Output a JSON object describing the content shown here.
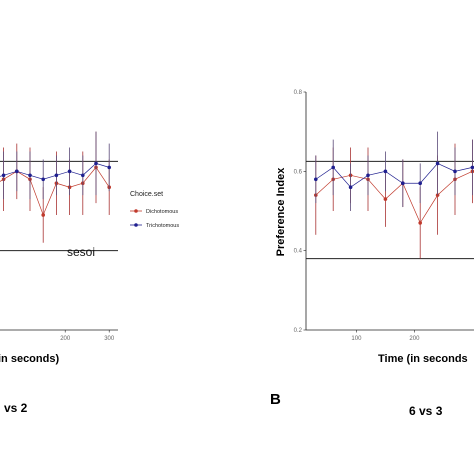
{
  "colors": {
    "dichotomous": "#c0392b",
    "trichotomous": "#1f1f8f",
    "dichotomous_bar": "#a83232",
    "trichotomous_bar": "#5a4a78",
    "axis": "#222222",
    "reference_line": "#222222"
  },
  "legend": {
    "title": "Choice.set",
    "entries": [
      "Dichotomous",
      "Trichotomous"
    ]
  },
  "panels": [
    {
      "letter": "",
      "caption": "vs 2",
      "xlabel": "in seconds)",
      "ylabel": "",
      "annotation": "sesoi"
    },
    {
      "letter": "B",
      "caption": "6 vs 3",
      "xlabel": "Time (in seconds",
      "ylabel": "Preference Index",
      "annotation": ""
    }
  ],
  "chart_data": [
    {
      "type": "line",
      "panel": "A (cropped)",
      "title": "",
      "xlabel": "in seconds)",
      "ylabel": "",
      "xlim": [
        20,
        320
      ],
      "ylim": [
        0.2,
        0.8
      ],
      "x_ticks": [
        200,
        300
      ],
      "y_ticks": [],
      "reference_lines": [
        {
          "y": 0.625,
          "label": ""
        },
        {
          "y": 0.4,
          "label": "sesoi"
        }
      ],
      "series": [
        {
          "name": "Dichotomous",
          "x": [
            30,
            60,
            90,
            120,
            150,
            180,
            210,
            240,
            270,
            300
          ],
          "y": [
            0.56,
            0.58,
            0.6,
            0.58,
            0.49,
            0.57,
            0.56,
            0.57,
            0.61,
            0.56
          ],
          "err": [
            0.09,
            0.08,
            0.07,
            0.08,
            0.07,
            0.08,
            0.07,
            0.08,
            0.09,
            0.07
          ]
        },
        {
          "name": "Trichotomous",
          "x": [
            30,
            60,
            90,
            120,
            150,
            180,
            210,
            240,
            270,
            300
          ],
          "y": [
            0.58,
            0.59,
            0.6,
            0.59,
            0.58,
            0.59,
            0.6,
            0.59,
            0.62,
            0.61
          ],
          "err": [
            0.06,
            0.06,
            0.05,
            0.06,
            0.05,
            0.05,
            0.06,
            0.05,
            0.08,
            0.06
          ]
        }
      ]
    },
    {
      "type": "line",
      "panel": "B",
      "title": "",
      "xlabel": "Time (in seconds",
      "ylabel": "Preference Index",
      "xlim": [
        20,
        320
      ],
      "ylim": [
        0.2,
        0.8
      ],
      "x_ticks": [
        100,
        200
      ],
      "y_ticks": [
        0.2,
        0.4,
        0.6,
        0.8
      ],
      "reference_lines": [
        {
          "y": 0.625,
          "label": ""
        },
        {
          "y": 0.38,
          "label": ""
        }
      ],
      "series": [
        {
          "name": "Dichotomous",
          "x": [
            30,
            60,
            90,
            120,
            150,
            180,
            210,
            240,
            270,
            300
          ],
          "y": [
            0.54,
            0.58,
            0.59,
            0.58,
            0.53,
            0.57,
            0.47,
            0.54,
            0.58,
            0.6
          ],
          "err": [
            0.1,
            0.08,
            0.07,
            0.08,
            0.07,
            0.06,
            0.09,
            0.1,
            0.09,
            0.08
          ]
        },
        {
          "name": "Trichotomous",
          "x": [
            30,
            60,
            90,
            120,
            150,
            180,
            210,
            240,
            270,
            300
          ],
          "y": [
            0.58,
            0.61,
            0.56,
            0.59,
            0.6,
            0.57,
            0.57,
            0.62,
            0.6,
            0.61
          ],
          "err": [
            0.06,
            0.07,
            0.06,
            0.05,
            0.05,
            0.06,
            0.05,
            0.08,
            0.06,
            0.07
          ]
        }
      ]
    }
  ]
}
